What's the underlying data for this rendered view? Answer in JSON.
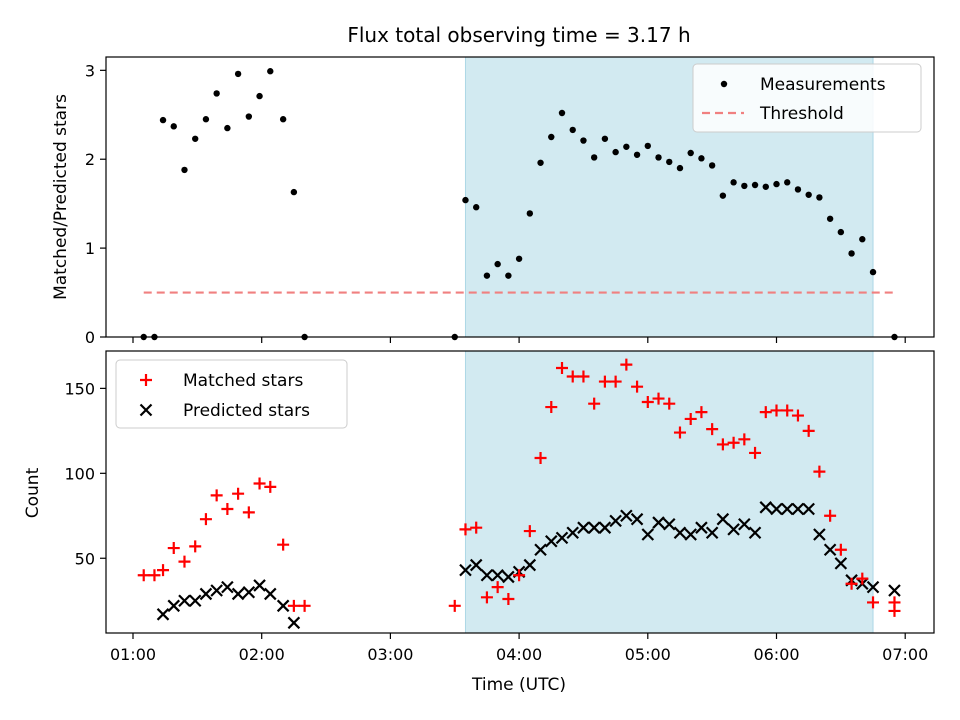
{
  "title": "Flux total observing time = 3.17 h",
  "colors": {
    "shade": "#add8e6",
    "measurement": "#000000",
    "threshold": "#f08080",
    "matched": "#ff0000",
    "predicted": "#000000"
  },
  "chart_data": [
    {
      "type": "scatter",
      "ylabel": "Matched/Predicted stars",
      "ylim": [
        0,
        3.15
      ],
      "yticks": [
        0,
        1,
        2,
        3
      ],
      "legend_position": "top-right",
      "shaded_interval": [
        "03:35",
        "06:45"
      ],
      "series": [
        {
          "name": "Measurements",
          "x": [
            "01:05",
            "01:10",
            "01:14",
            "01:19",
            "01:24",
            "01:29",
            "01:34",
            "01:39",
            "01:44",
            "01:49",
            "01:54",
            "01:59",
            "02:04",
            "02:10",
            "02:15",
            "02:20",
            "03:30",
            "03:35",
            "03:40",
            "03:45",
            "03:50",
            "03:55",
            "04:00",
            "04:05",
            "04:10",
            "04:15",
            "04:20",
            "04:25",
            "04:30",
            "04:35",
            "04:40",
            "04:45",
            "04:50",
            "04:55",
            "05:00",
            "05:05",
            "05:10",
            "05:15",
            "05:20",
            "05:25",
            "05:30",
            "05:35",
            "05:40",
            "05:45",
            "05:50",
            "05:55",
            "06:00",
            "06:05",
            "06:10",
            "06:15",
            "06:20",
            "06:25",
            "06:30",
            "06:35",
            "06:40",
            "06:45",
            "06:55"
          ],
          "y": [
            0,
            0,
            2.44,
            2.37,
            1.88,
            2.23,
            2.45,
            2.74,
            2.35,
            2.96,
            2.48,
            2.71,
            2.99,
            2.45,
            1.63,
            0,
            0,
            1.54,
            1.46,
            0.69,
            0.82,
            0.69,
            0.88,
            1.39,
            1.96,
            2.25,
            2.52,
            2.33,
            2.21,
            2.02,
            2.23,
            2.08,
            2.14,
            2.05,
            2.15,
            2.02,
            1.97,
            1.9,
            2.07,
            2.01,
            1.93,
            1.59,
            1.74,
            1.7,
            1.71,
            1.69,
            1.72,
            1.74,
            1.66,
            1.6,
            1.57,
            1.33,
            1.18,
            0.94,
            1.1,
            0.73,
            0
          ]
        },
        {
          "name": "Threshold",
          "x": [
            "01:05",
            "06:55"
          ],
          "y": [
            0.5,
            0.5
          ],
          "style": "dashed"
        }
      ]
    },
    {
      "type": "scatter",
      "ylabel": "Count",
      "xlabel": "Time (UTC)",
      "ylim": [
        6,
        172
      ],
      "yticks": [
        50,
        100,
        150
      ],
      "xticks": [
        "01:00",
        "02:00",
        "03:00",
        "04:00",
        "05:00",
        "06:00",
        "07:00"
      ],
      "legend_position": "top-left",
      "shaded_interval": [
        "03:35",
        "06:45"
      ],
      "series": [
        {
          "name": "Matched stars",
          "marker": "+",
          "x": [
            "01:05",
            "01:10",
            "01:14",
            "01:19",
            "01:24",
            "01:29",
            "01:34",
            "01:39",
            "01:44",
            "01:49",
            "01:54",
            "01:59",
            "02:04",
            "02:10",
            "02:15",
            "02:20",
            "03:30",
            "03:35",
            "03:40",
            "03:45",
            "03:50",
            "03:55",
            "04:00",
            "04:05",
            "04:10",
            "04:15",
            "04:20",
            "04:25",
            "04:30",
            "04:35",
            "04:40",
            "04:45",
            "04:50",
            "04:55",
            "05:00",
            "05:05",
            "05:10",
            "05:15",
            "05:20",
            "05:25",
            "05:30",
            "05:35",
            "05:40",
            "05:45",
            "05:50",
            "05:55",
            "06:00",
            "06:05",
            "06:10",
            "06:15",
            "06:20",
            "06:25",
            "06:30",
            "06:35",
            "06:40",
            "06:45",
            "06:55",
            "06:55"
          ],
          "y": [
            40,
            40,
            43,
            56,
            48,
            57,
            73,
            87,
            79,
            88,
            77,
            94,
            92,
            58,
            22,
            22,
            22,
            67,
            68,
            27,
            33,
            26,
            40,
            66,
            109,
            139,
            162,
            157,
            157,
            141,
            154,
            154,
            164,
            151,
            142,
            144,
            141,
            124,
            132,
            136,
            126,
            117,
            118,
            120,
            112,
            136,
            137,
            137,
            134,
            125,
            101,
            75,
            55,
            35,
            38,
            24,
            24,
            19
          ]
        },
        {
          "name": "Predicted stars",
          "marker": "x",
          "x": [
            "01:14",
            "01:19",
            "01:24",
            "01:29",
            "01:34",
            "01:39",
            "01:44",
            "01:49",
            "01:54",
            "01:59",
            "02:04",
            "02:10",
            "02:15",
            "03:35",
            "03:40",
            "03:45",
            "03:50",
            "03:55",
            "04:00",
            "04:05",
            "04:10",
            "04:15",
            "04:20",
            "04:25",
            "04:30",
            "04:35",
            "04:40",
            "04:45",
            "04:50",
            "04:55",
            "05:00",
            "05:05",
            "05:10",
            "05:15",
            "05:20",
            "05:25",
            "05:30",
            "05:35",
            "05:40",
            "05:45",
            "05:50",
            "05:55",
            "06:00",
            "06:05",
            "06:10",
            "06:15",
            "06:20",
            "06:25",
            "06:30",
            "06:35",
            "06:40",
            "06:45",
            "06:55"
          ],
          "y": [
            17,
            22,
            25,
            25,
            29,
            31,
            33,
            29,
            30,
            34,
            29,
            22,
            12,
            43,
            46,
            40,
            40,
            39,
            42,
            46,
            55,
            60,
            62,
            65,
            68,
            68,
            68,
            72,
            75,
            73,
            64,
            71,
            70,
            65,
            64,
            68,
            65,
            73,
            67,
            70,
            65,
            80,
            79,
            79,
            79,
            79,
            64,
            55,
            47,
            37,
            35,
            33,
            31
          ]
        }
      ]
    }
  ]
}
